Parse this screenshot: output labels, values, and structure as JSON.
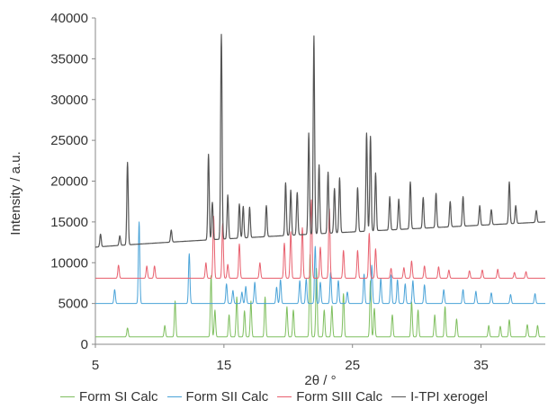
{
  "chart_data": {
    "type": "line",
    "title": "",
    "xlabel": "2θ / °",
    "ylabel": "Intensity / a.u.",
    "xlim": [
      5,
      40
    ],
    "ylim": [
      0,
      40000
    ],
    "xticks": [
      "5",
      "15",
      "25",
      "35"
    ],
    "xtick_values": [
      5,
      15,
      25,
      35
    ],
    "yticks": [
      "0",
      "5000",
      "10000",
      "15000",
      "20000",
      "25000",
      "30000",
      "35000",
      "40000"
    ],
    "ytick_values": [
      0,
      5000,
      10000,
      15000,
      20000,
      25000,
      30000,
      35000,
      40000
    ],
    "grid": false,
    "legend_position": "bottom",
    "series": [
      {
        "name": "Form SI Calc",
        "color": "#7fbf5f",
        "baseline": 900,
        "peaks": [
          [
            7.5,
            2000
          ],
          [
            10.4,
            2300
          ],
          [
            11.2,
            5300
          ],
          [
            14.0,
            8400
          ],
          [
            14.3,
            4200
          ],
          [
            15.4,
            3600
          ],
          [
            16.0,
            5800
          ],
          [
            16.6,
            4100
          ],
          [
            17.1,
            5300
          ],
          [
            18.2,
            5800
          ],
          [
            19.9,
            4600
          ],
          [
            20.4,
            4200
          ],
          [
            21.7,
            11000
          ],
          [
            22.2,
            9300
          ],
          [
            22.8,
            4200
          ],
          [
            23.4,
            4700
          ],
          [
            24.3,
            6200
          ],
          [
            26.4,
            7800
          ],
          [
            26.7,
            4400
          ],
          [
            28.1,
            3600
          ],
          [
            29.6,
            5200
          ],
          [
            30.1,
            4200
          ],
          [
            31.4,
            3600
          ],
          [
            32.2,
            4600
          ],
          [
            33.1,
            3100
          ],
          [
            35.6,
            2300
          ],
          [
            36.5,
            2200
          ],
          [
            37.2,
            3000
          ],
          [
            38.6,
            2400
          ],
          [
            39.4,
            2300
          ]
        ]
      },
      {
        "name": "Form SII Calc",
        "color": "#4aa3d8",
        "baseline": 5000,
        "peaks": [
          [
            6.5,
            6700
          ],
          [
            8.4,
            15000
          ],
          [
            12.3,
            11100
          ],
          [
            15.2,
            7400
          ],
          [
            15.7,
            6600
          ],
          [
            16.4,
            6400
          ],
          [
            16.7,
            7100
          ],
          [
            17.4,
            7600
          ],
          [
            19.1,
            7000
          ],
          [
            19.4,
            7900
          ],
          [
            20.9,
            7800
          ],
          [
            21.4,
            8000
          ],
          [
            22.1,
            12000
          ],
          [
            22.5,
            7600
          ],
          [
            23.3,
            8800
          ],
          [
            23.9,
            7800
          ],
          [
            24.6,
            6400
          ],
          [
            25.9,
            8600
          ],
          [
            26.5,
            9700
          ],
          [
            27.2,
            8100
          ],
          [
            28.0,
            8500
          ],
          [
            28.5,
            7900
          ],
          [
            29.1,
            7400
          ],
          [
            29.7,
            7800
          ],
          [
            30.6,
            7300
          ],
          [
            32.1,
            6700
          ],
          [
            33.6,
            6700
          ],
          [
            34.6,
            6500
          ],
          [
            35.8,
            6300
          ],
          [
            37.3,
            6100
          ],
          [
            39.2,
            6200
          ]
        ]
      },
      {
        "name": "Form SIII Calc",
        "color": "#e8606e",
        "baseline": 8100,
        "peaks": [
          [
            6.8,
            9700
          ],
          [
            9.0,
            9600
          ],
          [
            9.6,
            9600
          ],
          [
            13.6,
            10000
          ],
          [
            14.2,
            15700
          ],
          [
            14.9,
            14800
          ],
          [
            15.3,
            9800
          ],
          [
            16.2,
            12300
          ],
          [
            17.8,
            10000
          ],
          [
            19.7,
            12400
          ],
          [
            20.2,
            13800
          ],
          [
            21.1,
            14300
          ],
          [
            21.8,
            17700
          ],
          [
            22.5,
            11900
          ],
          [
            23.2,
            16600
          ],
          [
            24.3,
            11500
          ],
          [
            25.4,
            11500
          ],
          [
            26.3,
            13600
          ],
          [
            26.8,
            11700
          ],
          [
            28.0,
            9300
          ],
          [
            29.0,
            9400
          ],
          [
            29.6,
            10200
          ],
          [
            30.6,
            9600
          ],
          [
            31.7,
            9500
          ],
          [
            32.5,
            9100
          ],
          [
            34.1,
            9000
          ],
          [
            35.1,
            9100
          ],
          [
            36.3,
            9200
          ],
          [
            37.6,
            8800
          ],
          [
            38.5,
            8900
          ]
        ]
      },
      {
        "name": "I-TPI xerogel",
        "color": "#555555",
        "baseline_start": 11900,
        "baseline_end": 15000,
        "peaks": [
          [
            5.4,
            13500
          ],
          [
            6.9,
            13300
          ],
          [
            7.5,
            22300
          ],
          [
            10.9,
            14000
          ],
          [
            13.8,
            23300
          ],
          [
            14.1,
            17400
          ],
          [
            14.8,
            38000
          ],
          [
            15.3,
            18300
          ],
          [
            16.2,
            17200
          ],
          [
            16.5,
            16900
          ],
          [
            17.0,
            16800
          ],
          [
            18.3,
            17000
          ],
          [
            19.8,
            19800
          ],
          [
            20.2,
            18900
          ],
          [
            20.7,
            18600
          ],
          [
            21.6,
            25900
          ],
          [
            22.0,
            37800
          ],
          [
            22.4,
            22000
          ],
          [
            23.1,
            21100
          ],
          [
            23.6,
            19100
          ],
          [
            24.0,
            20400
          ],
          [
            25.4,
            19200
          ],
          [
            26.1,
            25900
          ],
          [
            26.4,
            25500
          ],
          [
            26.8,
            21000
          ],
          [
            27.9,
            18100
          ],
          [
            28.6,
            17800
          ],
          [
            29.5,
            19900
          ],
          [
            30.5,
            18000
          ],
          [
            31.5,
            18500
          ],
          [
            32.6,
            17500
          ],
          [
            33.6,
            18100
          ],
          [
            34.9,
            17000
          ],
          [
            35.8,
            16500
          ],
          [
            37.2,
            19900
          ],
          [
            37.7,
            17000
          ],
          [
            39.3,
            16400
          ]
        ]
      }
    ]
  }
}
